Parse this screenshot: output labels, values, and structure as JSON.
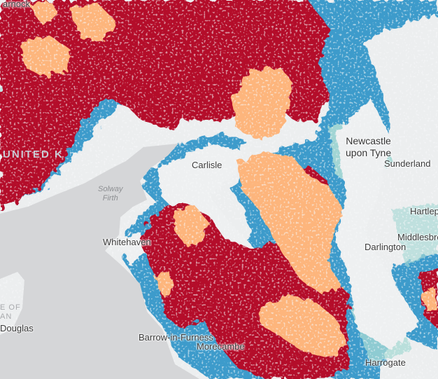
{
  "map": {
    "background_color": "#d5d6d8",
    "land_color": "#eceeef",
    "legend_colors": {
      "red": "#b4112a",
      "orange": "#fdb57b",
      "blue": "#3e9bcb",
      "teal": "#a7d9d4"
    },
    "labels": {
      "newcastle": "Newcastle\nupon Tyne",
      "sunderland": "Sunderland",
      "carlisle": "Carlisle",
      "hartlepool": "Hartlepool",
      "middlesbrough": "Middlesbrough",
      "darlington": "Darlington",
      "whitehaven": "Whitehaven",
      "barrow": "Barrow-in-Furness",
      "morecambe": "Morecambe",
      "harrogate": "Harrogate",
      "douglas": "Douglas",
      "solway_firth": "Solway\nFirth",
      "isle_of_man": "E OF\nAN",
      "united_kingdom": "UNITED K",
      "top_left_cut": "arnock"
    }
  }
}
